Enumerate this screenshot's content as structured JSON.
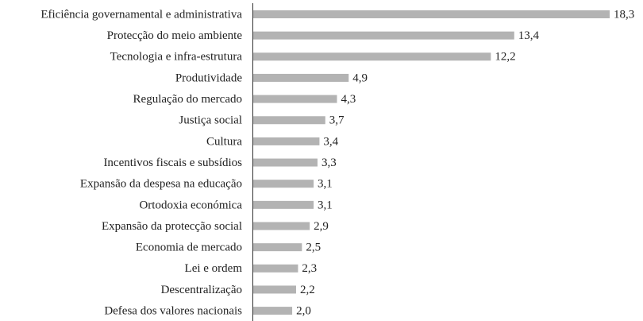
{
  "chart_data": {
    "type": "hbar",
    "categories": [
      "Eficiência governamental e administrativa",
      "Protecção do meio ambiente",
      "Tecnologia e infra-estrutura",
      "Produtividade",
      "Regulação do mercado",
      "Justiça social",
      "Cultura",
      "Incentivos fiscais e subsídios",
      "Expansão da despesa na educação",
      "Ortodoxia económica",
      "Expansão da protecção social",
      "Economia de mercado",
      "Lei e ordem",
      "Descentralização",
      "Defesa dos valores nacionais"
    ],
    "values": [
      18.3,
      13.4,
      12.2,
      4.9,
      4.3,
      3.7,
      3.4,
      3.3,
      3.1,
      3.1,
      2.9,
      2.5,
      2.3,
      2.2,
      2.0
    ],
    "value_labels": [
      "18,3",
      "13,4",
      "12,2",
      "4,9",
      "4,3",
      "3,7",
      "3,4",
      "3,3",
      "3,1",
      "3,1",
      "2,9",
      "2,5",
      "2,3",
      "2,2",
      "2,0"
    ],
    "color": "#b3b3b3"
  }
}
